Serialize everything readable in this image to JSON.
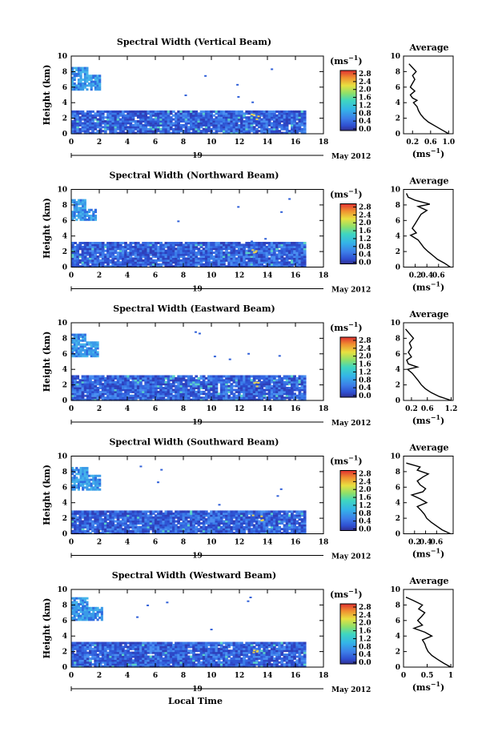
{
  "figure": {
    "xlabel": "Local Time",
    "date_day": "19",
    "date_month_year": "May 2012",
    "avg_title": "Average",
    "colorbar_unit": "(ms",
    "colorbar_unit_exp": "−1",
    "height_label": "Height (km)",
    "avg_unit": "(ms",
    "avg_unit_exp": "−1",
    "paren_close": ")"
  },
  "chart_data": [
    {
      "type": "heatmap",
      "title": "Spectral Width (Vertical Beam)",
      "ylabel": "Height (km)",
      "xlabel": "Local Time",
      "xlim": [
        0,
        18
      ],
      "ylim": [
        0,
        10
      ],
      "xticks": [
        "0",
        "2",
        "4",
        "6",
        "8",
        "10",
        "12",
        "14",
        "16",
        "18"
      ],
      "yticks": [
        "0",
        "2",
        "4",
        "6",
        "8",
        "10"
      ],
      "data_extent_hours": 16.7,
      "low_layer_top_km": 3.0,
      "upper_patch": {
        "x": [
          0,
          2.0
        ],
        "y": [
          5.6,
          8.6
        ]
      },
      "colorbar": {
        "ticks": [
          "0.0",
          "0.4",
          "0.8",
          "1.2",
          "1.6",
          "2.0",
          "2.4",
          "2.8"
        ],
        "unit": "(ms−1)"
      },
      "average": {
        "title": "Average",
        "xlim": [
          0,
          1.1
        ],
        "xticks": [
          "0.2",
          "0.6",
          "1.0"
        ],
        "ylim": [
          0,
          10
        ],
        "yticks": [
          "0",
          "2",
          "4",
          "6",
          "8",
          "10"
        ],
        "xlabel": "(ms−1)",
        "profile": [
          [
            1.0,
            0
          ],
          [
            0.85,
            0.5
          ],
          [
            0.7,
            1.0
          ],
          [
            0.55,
            1.5
          ],
          [
            0.45,
            2.0
          ],
          [
            0.38,
            2.5
          ],
          [
            0.33,
            3.0
          ],
          [
            0.3,
            3.5
          ],
          [
            0.22,
            4.0
          ],
          [
            0.3,
            4.3
          ],
          [
            0.2,
            4.6
          ],
          [
            0.15,
            5.0
          ],
          [
            0.25,
            5.5
          ],
          [
            0.15,
            6.0
          ],
          [
            0.2,
            6.5
          ],
          [
            0.25,
            7.0
          ],
          [
            0.2,
            7.5
          ],
          [
            0.28,
            8.0
          ],
          [
            0.2,
            8.5
          ],
          [
            0.12,
            9.0
          ]
        ]
      }
    },
    {
      "type": "heatmap",
      "title": "Spectral Width (Northward Beam)",
      "ylabel": "Height (km)",
      "xlabel": "Local Time",
      "xlim": [
        0,
        18
      ],
      "ylim": [
        0,
        10
      ],
      "xticks": [
        "0",
        "2",
        "4",
        "6",
        "8",
        "10",
        "12",
        "14",
        "16",
        "18"
      ],
      "yticks": [
        "0",
        "2",
        "4",
        "6",
        "8",
        "10"
      ],
      "data_extent_hours": 16.7,
      "low_layer_top_km": 3.1,
      "upper_patch": {
        "x": [
          0,
          1.7
        ],
        "y": [
          6.0,
          8.6
        ]
      },
      "colorbar": {
        "ticks": [
          "0.0",
          "0.4",
          "0.8",
          "1.2",
          "1.6",
          "2.0",
          "2.4",
          "2.8"
        ],
        "unit": "(ms−1)"
      },
      "average": {
        "title": "Average",
        "xlim": [
          0,
          0.85
        ],
        "xticks": [
          "0.2",
          "0.4",
          "0.6"
        ],
        "ylim": [
          0,
          10
        ],
        "yticks": [
          "0",
          "2",
          "4",
          "6",
          "8",
          "10"
        ],
        "xlabel": "(ms−1)",
        "profile": [
          [
            0.8,
            0
          ],
          [
            0.7,
            0.5
          ],
          [
            0.58,
            1.0
          ],
          [
            0.5,
            1.5
          ],
          [
            0.42,
            2.0
          ],
          [
            0.35,
            2.5
          ],
          [
            0.3,
            3.0
          ],
          [
            0.25,
            3.5
          ],
          [
            0.12,
            4.1
          ],
          [
            0.22,
            4.4
          ],
          [
            0.15,
            5.0
          ],
          [
            0.2,
            5.6
          ],
          [
            0.25,
            6.2
          ],
          [
            0.3,
            6.8
          ],
          [
            0.4,
            7.3
          ],
          [
            0.25,
            7.8
          ],
          [
            0.45,
            8.1
          ],
          [
            0.2,
            8.6
          ],
          [
            0.08,
            9.0
          ],
          [
            0.05,
            9.5
          ]
        ]
      }
    },
    {
      "type": "heatmap",
      "title": "Spectral Width (Eastward Beam)",
      "ylabel": "Height (km)",
      "xlabel": "Local Time",
      "xlim": [
        0,
        18
      ],
      "ylim": [
        0,
        10
      ],
      "xticks": [
        "0",
        "2",
        "4",
        "6",
        "8",
        "10",
        "12",
        "14",
        "16",
        "18"
      ],
      "yticks": [
        "0",
        "2",
        "4",
        "6",
        "8",
        "10"
      ],
      "data_extent_hours": 16.7,
      "low_layer_top_km": 3.2,
      "upper_patch": {
        "x": [
          0,
          1.9
        ],
        "y": [
          5.6,
          8.6
        ]
      },
      "colorbar": {
        "ticks": [
          "0.0",
          "0.4",
          "0.8",
          "1.2",
          "1.6",
          "2.0",
          "2.4",
          "2.8"
        ],
        "unit": "(ms−1)"
      },
      "average": {
        "title": "Average",
        "xlim": [
          0,
          1.25
        ],
        "xticks": [
          "0.2",
          "0.6",
          "1.2"
        ],
        "ylim": [
          0,
          10
        ],
        "yticks": [
          "0",
          "2",
          "4",
          "6",
          "8",
          "10"
        ],
        "xlabel": "(ms−1)",
        "profile": [
          [
            1.2,
            0
          ],
          [
            0.9,
            0.5
          ],
          [
            0.7,
            1.0
          ],
          [
            0.55,
            1.5
          ],
          [
            0.45,
            2.0
          ],
          [
            0.38,
            2.5
          ],
          [
            0.3,
            3.0
          ],
          [
            0.22,
            3.5
          ],
          [
            0.1,
            4.0
          ],
          [
            0.35,
            4.3
          ],
          [
            0.12,
            4.7
          ],
          [
            0.08,
            5.2
          ],
          [
            0.2,
            5.6
          ],
          [
            0.12,
            6.2
          ],
          [
            0.2,
            6.8
          ],
          [
            0.15,
            7.4
          ],
          [
            0.25,
            8.0
          ],
          [
            0.15,
            8.6
          ],
          [
            0.05,
            9.2
          ]
        ]
      }
    },
    {
      "type": "heatmap",
      "title": "Spectral Width (Southward Beam)",
      "ylabel": "Height (km)",
      "xlabel": "Local Time",
      "xlim": [
        0,
        18
      ],
      "ylim": [
        0,
        10
      ],
      "xticks": [
        "0",
        "2",
        "4",
        "6",
        "8",
        "10",
        "12",
        "14",
        "16",
        "18"
      ],
      "yticks": [
        "0",
        "2",
        "4",
        "6",
        "8",
        "10"
      ],
      "data_extent_hours": 16.7,
      "low_layer_top_km": 3.0,
      "upper_patch": {
        "x": [
          0,
          2.0
        ],
        "y": [
          5.6,
          8.6
        ]
      },
      "colorbar": {
        "ticks": [
          "0.0",
          "0.4",
          "0.8",
          "1.2",
          "1.6",
          "2.0",
          "2.4",
          "2.8"
        ],
        "unit": "(ms−1)"
      },
      "average": {
        "title": "Average",
        "xlim": [
          0,
          0.9
        ],
        "xticks": [
          "0.2",
          "0.4",
          "0.6"
        ],
        "ylim": [
          0,
          10
        ],
        "yticks": [
          "0",
          "2",
          "4",
          "6",
          "8",
          "10"
        ],
        "xlabel": "(ms−1)",
        "profile": [
          [
            0.85,
            0
          ],
          [
            0.7,
            0.5
          ],
          [
            0.6,
            1.0
          ],
          [
            0.5,
            1.5
          ],
          [
            0.42,
            2.0
          ],
          [
            0.38,
            2.5
          ],
          [
            0.32,
            3.0
          ],
          [
            0.25,
            3.5
          ],
          [
            0.42,
            4.0
          ],
          [
            0.3,
            4.5
          ],
          [
            0.15,
            5.0
          ],
          [
            0.35,
            5.4
          ],
          [
            0.4,
            5.8
          ],
          [
            0.3,
            6.3
          ],
          [
            0.25,
            6.8
          ],
          [
            0.35,
            7.3
          ],
          [
            0.45,
            7.7
          ],
          [
            0.25,
            8.2
          ],
          [
            0.3,
            8.6
          ],
          [
            0.05,
            9.1
          ]
        ]
      }
    },
    {
      "type": "heatmap",
      "title": "Spectral Width (Westward Beam)",
      "ylabel": "Height (km)",
      "xlabel": "Local Time",
      "xlim": [
        0,
        18
      ],
      "ylim": [
        0,
        10
      ],
      "xticks": [
        "0",
        "2",
        "4",
        "6",
        "8",
        "10",
        "12",
        "14",
        "16",
        "18"
      ],
      "yticks": [
        "0",
        "2",
        "4",
        "6",
        "8",
        "10"
      ],
      "data_extent_hours": 16.7,
      "low_layer_top_km": 3.1,
      "upper_patch": {
        "x": [
          0,
          2.1
        ],
        "y": [
          6.0,
          8.8
        ]
      },
      "colorbar": {
        "ticks": [
          "0.0",
          "0.4",
          "0.8",
          "1.2",
          "1.6",
          "2.0",
          "2.4",
          "2.8"
        ],
        "unit": "(ms−1)"
      },
      "average": {
        "title": "Average",
        "xlim": [
          0,
          1.05
        ],
        "xticks": [
          "0",
          "0.5",
          "1"
        ],
        "ylim": [
          0,
          10
        ],
        "yticks": [
          "0",
          "2",
          "4",
          "6",
          "8",
          "10"
        ],
        "xlabel": "(ms−1)",
        "profile": [
          [
            1.0,
            0
          ],
          [
            0.85,
            0.5
          ],
          [
            0.72,
            1.0
          ],
          [
            0.6,
            1.5
          ],
          [
            0.52,
            2.0
          ],
          [
            0.48,
            2.5
          ],
          [
            0.45,
            3.0
          ],
          [
            0.4,
            3.5
          ],
          [
            0.6,
            4.0
          ],
          [
            0.45,
            4.5
          ],
          [
            0.22,
            5.0
          ],
          [
            0.4,
            5.4
          ],
          [
            0.3,
            6.0
          ],
          [
            0.38,
            6.5
          ],
          [
            0.45,
            7.0
          ],
          [
            0.32,
            7.5
          ],
          [
            0.4,
            8.0
          ],
          [
            0.2,
            8.6
          ],
          [
            0.05,
            9.0
          ]
        ]
      }
    }
  ]
}
